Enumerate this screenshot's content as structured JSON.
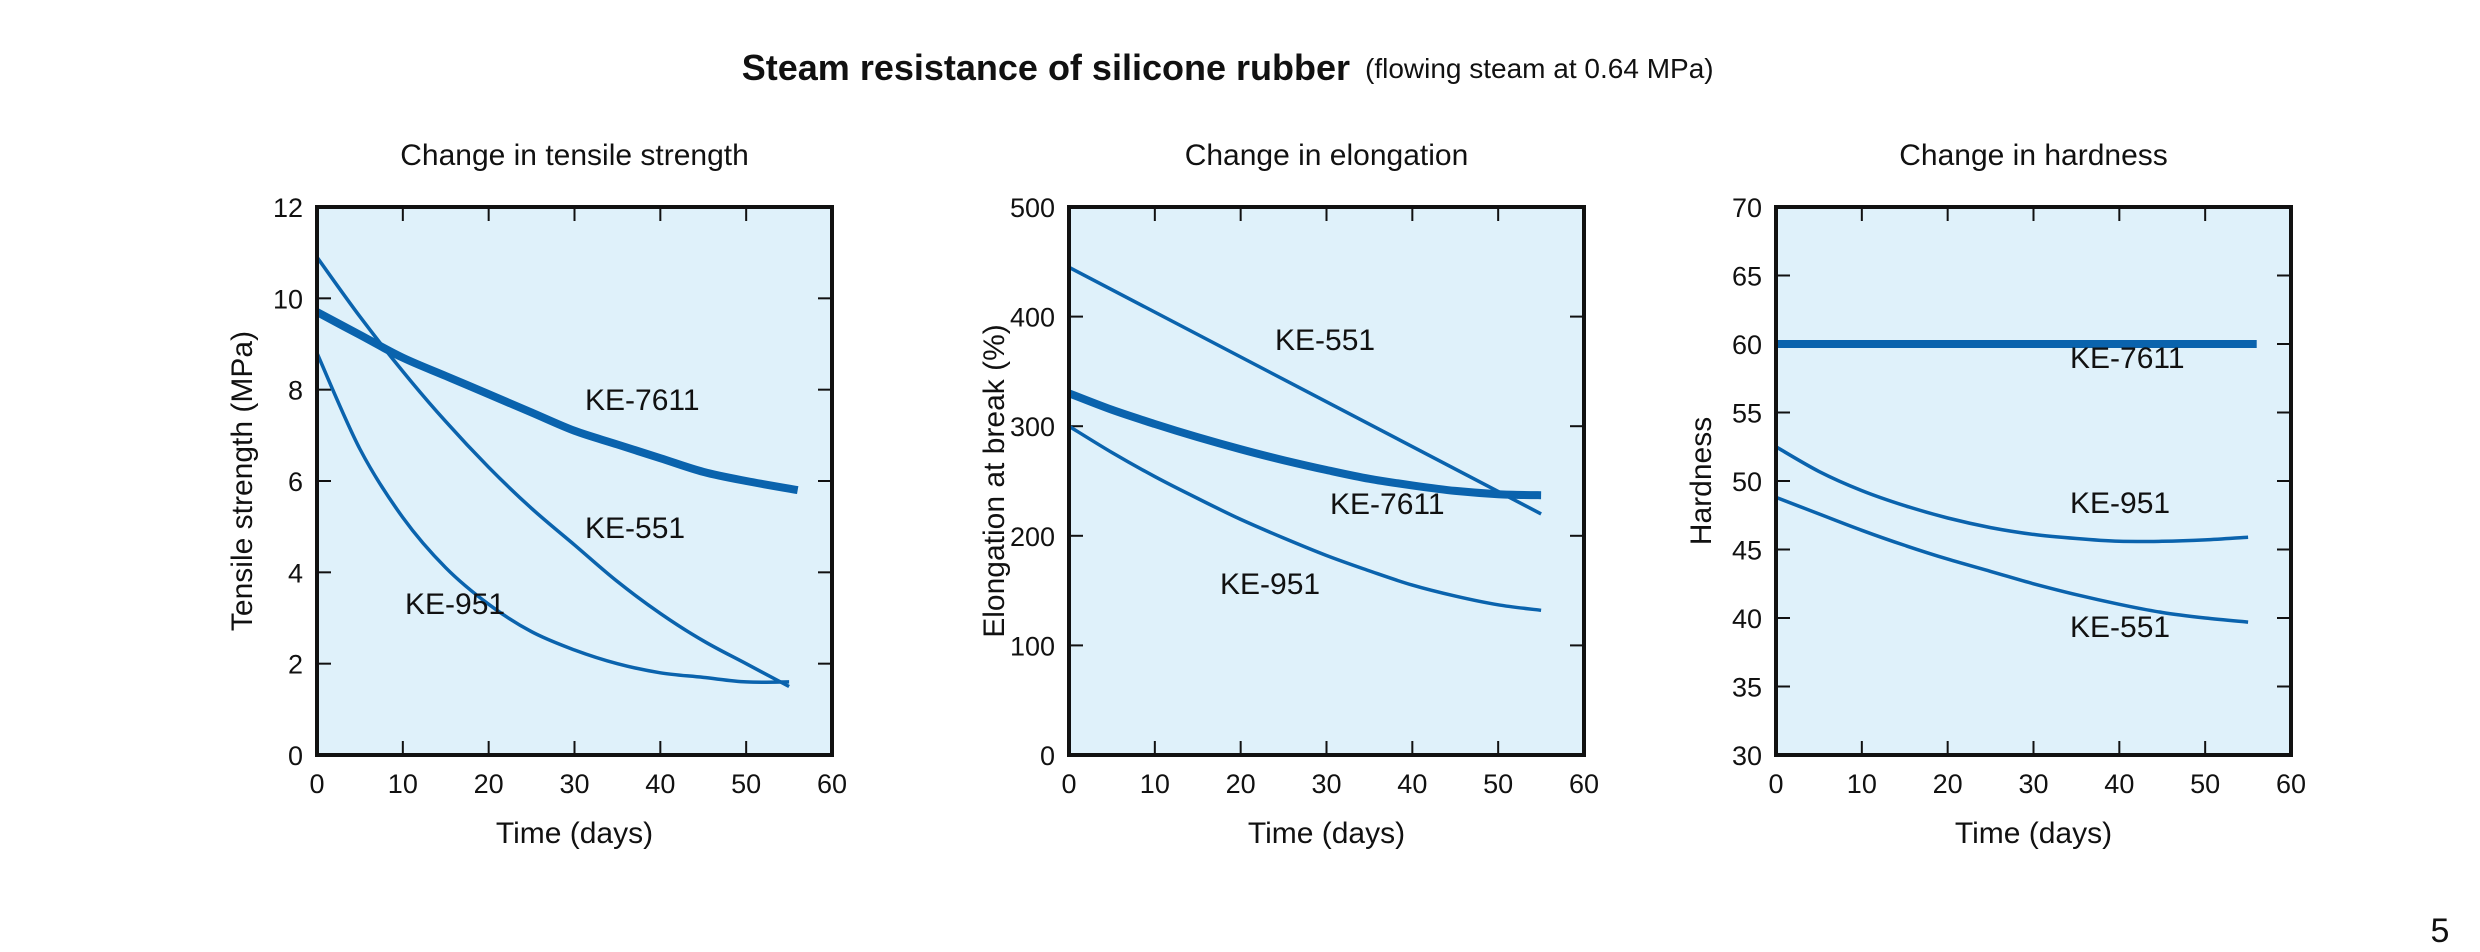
{
  "title": "Steam resistance of silicone rubber",
  "subtitle": "(flowing steam at 0.64 MPa)",
  "page_number": "5",
  "colors": {
    "plot_background": "#dff1fa",
    "line": "#0a63ad",
    "frame": "#111111"
  },
  "chart_data": [
    {
      "type": "line",
      "title": "Change in tensile strength",
      "xlabel": "Time (days)",
      "ylabel": "Tensile strength (MPa)",
      "xlim": [
        0,
        60
      ],
      "ylim": [
        0,
        12
      ],
      "xticks": [
        0,
        10,
        20,
        30,
        40,
        50,
        60
      ],
      "yticks": [
        0,
        2,
        4,
        6,
        8,
        10,
        12
      ],
      "grid": false,
      "series": [
        {
          "name": "KE-7611",
          "bold": true,
          "x": [
            0,
            5,
            10,
            15,
            20,
            25,
            30,
            35,
            40,
            45,
            50,
            56
          ],
          "y": [
            9.7,
            9.2,
            8.7,
            8.3,
            7.9,
            7.5,
            7.1,
            6.8,
            6.5,
            6.2,
            6.0,
            5.8
          ]
        },
        {
          "name": "KE-551",
          "bold": false,
          "x": [
            0,
            5,
            10,
            15,
            20,
            25,
            30,
            35,
            40,
            45,
            50,
            55
          ],
          "y": [
            10.9,
            9.6,
            8.4,
            7.3,
            6.3,
            5.4,
            4.6,
            3.8,
            3.1,
            2.5,
            2.0,
            1.5
          ]
        },
        {
          "name": "KE-951",
          "bold": false,
          "x": [
            0,
            5,
            10,
            15,
            20,
            25,
            30,
            35,
            40,
            45,
            50,
            55
          ],
          "y": [
            8.8,
            6.7,
            5.2,
            4.1,
            3.3,
            2.7,
            2.3,
            2.0,
            1.8,
            1.7,
            1.6,
            1.6
          ]
        }
      ]
    },
    {
      "type": "line",
      "title": "Change in elongation",
      "xlabel": "Time (days)",
      "ylabel": "Elongation at break  (%)",
      "xlim": [
        0,
        60
      ],
      "ylim": [
        0,
        500
      ],
      "xticks": [
        0,
        10,
        20,
        30,
        40,
        50,
        60
      ],
      "yticks": [
        0,
        100,
        200,
        300,
        400,
        500
      ],
      "grid": false,
      "series": [
        {
          "name": "KE-551",
          "bold": false,
          "x": [
            0,
            55
          ],
          "y": [
            445,
            220
          ]
        },
        {
          "name": "KE-7611",
          "bold": true,
          "x": [
            0,
            5,
            10,
            15,
            20,
            25,
            30,
            35,
            40,
            45,
            50,
            55
          ],
          "y": [
            330,
            315,
            302,
            290,
            279,
            269,
            260,
            252,
            246,
            241,
            238,
            237
          ]
        },
        {
          "name": "KE-951",
          "bold": false,
          "x": [
            0,
            5,
            10,
            15,
            20,
            25,
            30,
            35,
            40,
            45,
            50,
            55
          ],
          "y": [
            300,
            276,
            254,
            234,
            215,
            198,
            182,
            168,
            155,
            145,
            137,
            132
          ]
        }
      ]
    },
    {
      "type": "line",
      "title": "Change in hardness",
      "xlabel": "Time (days)",
      "ylabel": "Hardness",
      "xlim": [
        0,
        60
      ],
      "ylim": [
        30,
        70
      ],
      "xticks": [
        0,
        10,
        20,
        30,
        40,
        50,
        60
      ],
      "yticks": [
        30,
        35,
        40,
        45,
        50,
        55,
        60,
        65,
        70
      ],
      "grid": false,
      "series": [
        {
          "name": "KE-7611",
          "bold": true,
          "x": [
            0,
            56
          ],
          "y": [
            60,
            60
          ]
        },
        {
          "name": "KE-951",
          "bold": false,
          "x": [
            0,
            5,
            10,
            15,
            20,
            25,
            30,
            35,
            40,
            45,
            50,
            55
          ],
          "y": [
            52.5,
            50.7,
            49.3,
            48.2,
            47.3,
            46.6,
            46.1,
            45.8,
            45.6,
            45.6,
            45.7,
            45.9
          ]
        },
        {
          "name": "KE-551",
          "bold": false,
          "x": [
            0,
            5,
            10,
            15,
            20,
            25,
            30,
            35,
            40,
            45,
            50,
            55
          ],
          "y": [
            48.8,
            47.6,
            46.4,
            45.3,
            44.3,
            43.4,
            42.5,
            41.7,
            41.0,
            40.4,
            40.0,
            39.7
          ]
        }
      ]
    }
  ]
}
